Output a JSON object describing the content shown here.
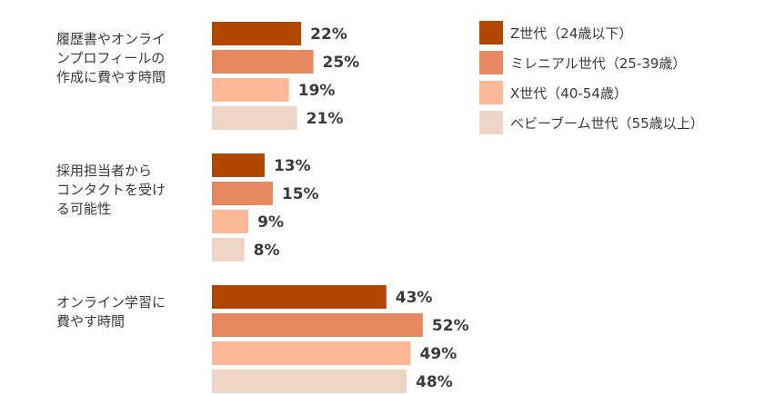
{
  "chart_data": {
    "type": "bar",
    "orientation": "horizontal",
    "categories": [
      [
        "履歴書やオンライ",
        "ンプロフィールの",
        "作成に費やす時間"
      ],
      [
        "採用担当者から",
        "コンタクトを受け",
        "る可能性"
      ],
      [
        "オンライン学習に",
        "費やす時間"
      ]
    ],
    "series": [
      {
        "name": "Z世代（24歳以下）",
        "color": "#b34700",
        "values": [
          22,
          13,
          43
        ]
      },
      {
        "name": "ミレニアル世代（25-39歳）",
        "color": "#e5875f",
        "values": [
          25,
          15,
          52
        ]
      },
      {
        "name": "X世代（40-54歳）",
        "color": "#fdb897",
        "values": [
          19,
          9,
          49
        ]
      },
      {
        "name": "ベビーブーム世代（55歳以上）",
        "color": "#efd5c5",
        "values": [
          21,
          8,
          48
        ]
      }
    ],
    "value_suffix": "%",
    "xlim": [
      0,
      60
    ],
    "grid": false,
    "legend_position": "top-right"
  }
}
